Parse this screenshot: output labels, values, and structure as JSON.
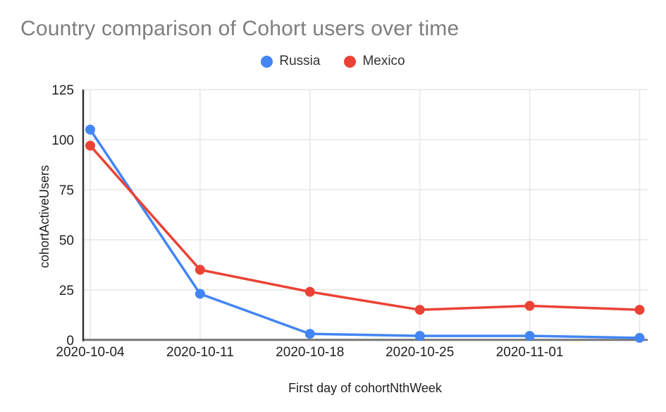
{
  "page": {
    "background": "#ffffff",
    "title_color": "#7e7e7e",
    "gridline_color": "#e6e6e6",
    "y_axis_line_color": "#333333",
    "baseline_color": "#777777",
    "tick_text_color": "#222222"
  },
  "chart_data": {
    "type": "line",
    "title": "Country comparison of Cohort users over time",
    "xlabel": "First day of cohortNthWeek",
    "ylabel": "cohortActiveUsers",
    "categories": [
      "2020-10-04",
      "2020-10-11",
      "2020-10-18",
      "2020-10-25",
      "2020-11-01",
      ""
    ],
    "series": [
      {
        "name": "Russia",
        "color": "#4285F4",
        "values": [
          105,
          23,
          3,
          2,
          2,
          1
        ]
      },
      {
        "name": "Mexico",
        "color": "#EA4335",
        "values": [
          97,
          35,
          24,
          15,
          17,
          15
        ]
      }
    ],
    "ylim": [
      0,
      125
    ],
    "y_ticks": [
      0,
      25,
      50,
      75,
      100,
      125
    ],
    "grid": true,
    "legend_position": "top-center",
    "marker": "circle"
  }
}
